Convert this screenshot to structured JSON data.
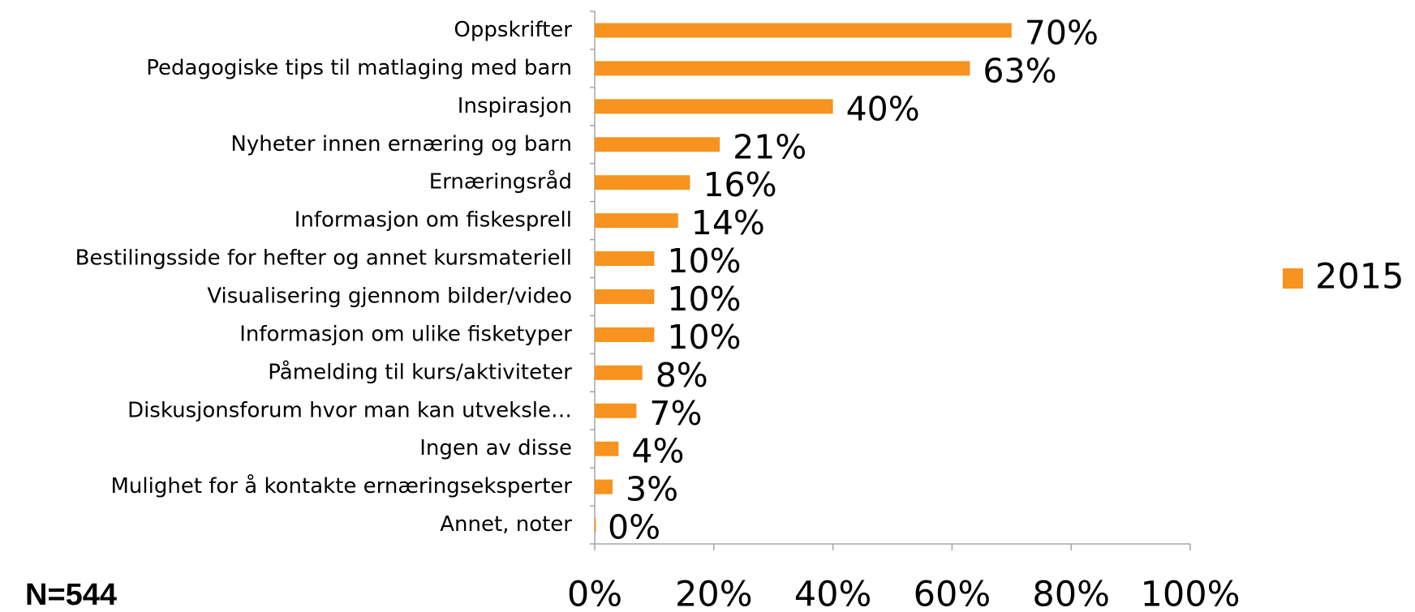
{
  "chart_data": {
    "type": "bar",
    "orientation": "horizontal",
    "note": "N=544",
    "categories": [
      "Oppskrifter",
      "Pedagogiske tips til matlaging med barn",
      "Inspirasjon",
      "Nyheter innen ernæring og barn",
      "Ernæringsråd",
      "Informasjon om fiskesprell",
      "Bestilingsside for hefter og annet kursmateriell",
      "Visualisering gjennom bilder/video",
      "Informasjon om ulike fisketyper",
      "Påmelding til kurs/aktiviteter",
      "Diskusjonsforum hvor man kan utveksle…",
      "Ingen av disse",
      "Mulighet for å kontakte ernæringseksperter",
      "Annet, noter"
    ],
    "series": [
      {
        "name": "2015",
        "color": "#f7931e",
        "values": [
          70,
          63,
          40,
          21,
          16,
          14,
          10,
          10,
          10,
          8,
          7,
          4,
          3,
          0
        ],
        "value_labels": [
          "70%",
          "63%",
          "40%",
          "21%",
          "16%",
          "14%",
          "10%",
          "10%",
          "10%",
          "8%",
          "7%",
          "4%",
          "3%",
          "0%"
        ]
      }
    ],
    "xlim": [
      0,
      100
    ],
    "xticks": [
      {
        "value": 0,
        "label": "0%"
      },
      {
        "value": 20,
        "label": "20%"
      },
      {
        "value": 40,
        "label": "40%"
      },
      {
        "value": 60,
        "label": "60%"
      },
      {
        "value": 80,
        "label": "80%"
      },
      {
        "value": 100,
        "label": "100%"
      }
    ],
    "legend": "right",
    "grid": false
  }
}
